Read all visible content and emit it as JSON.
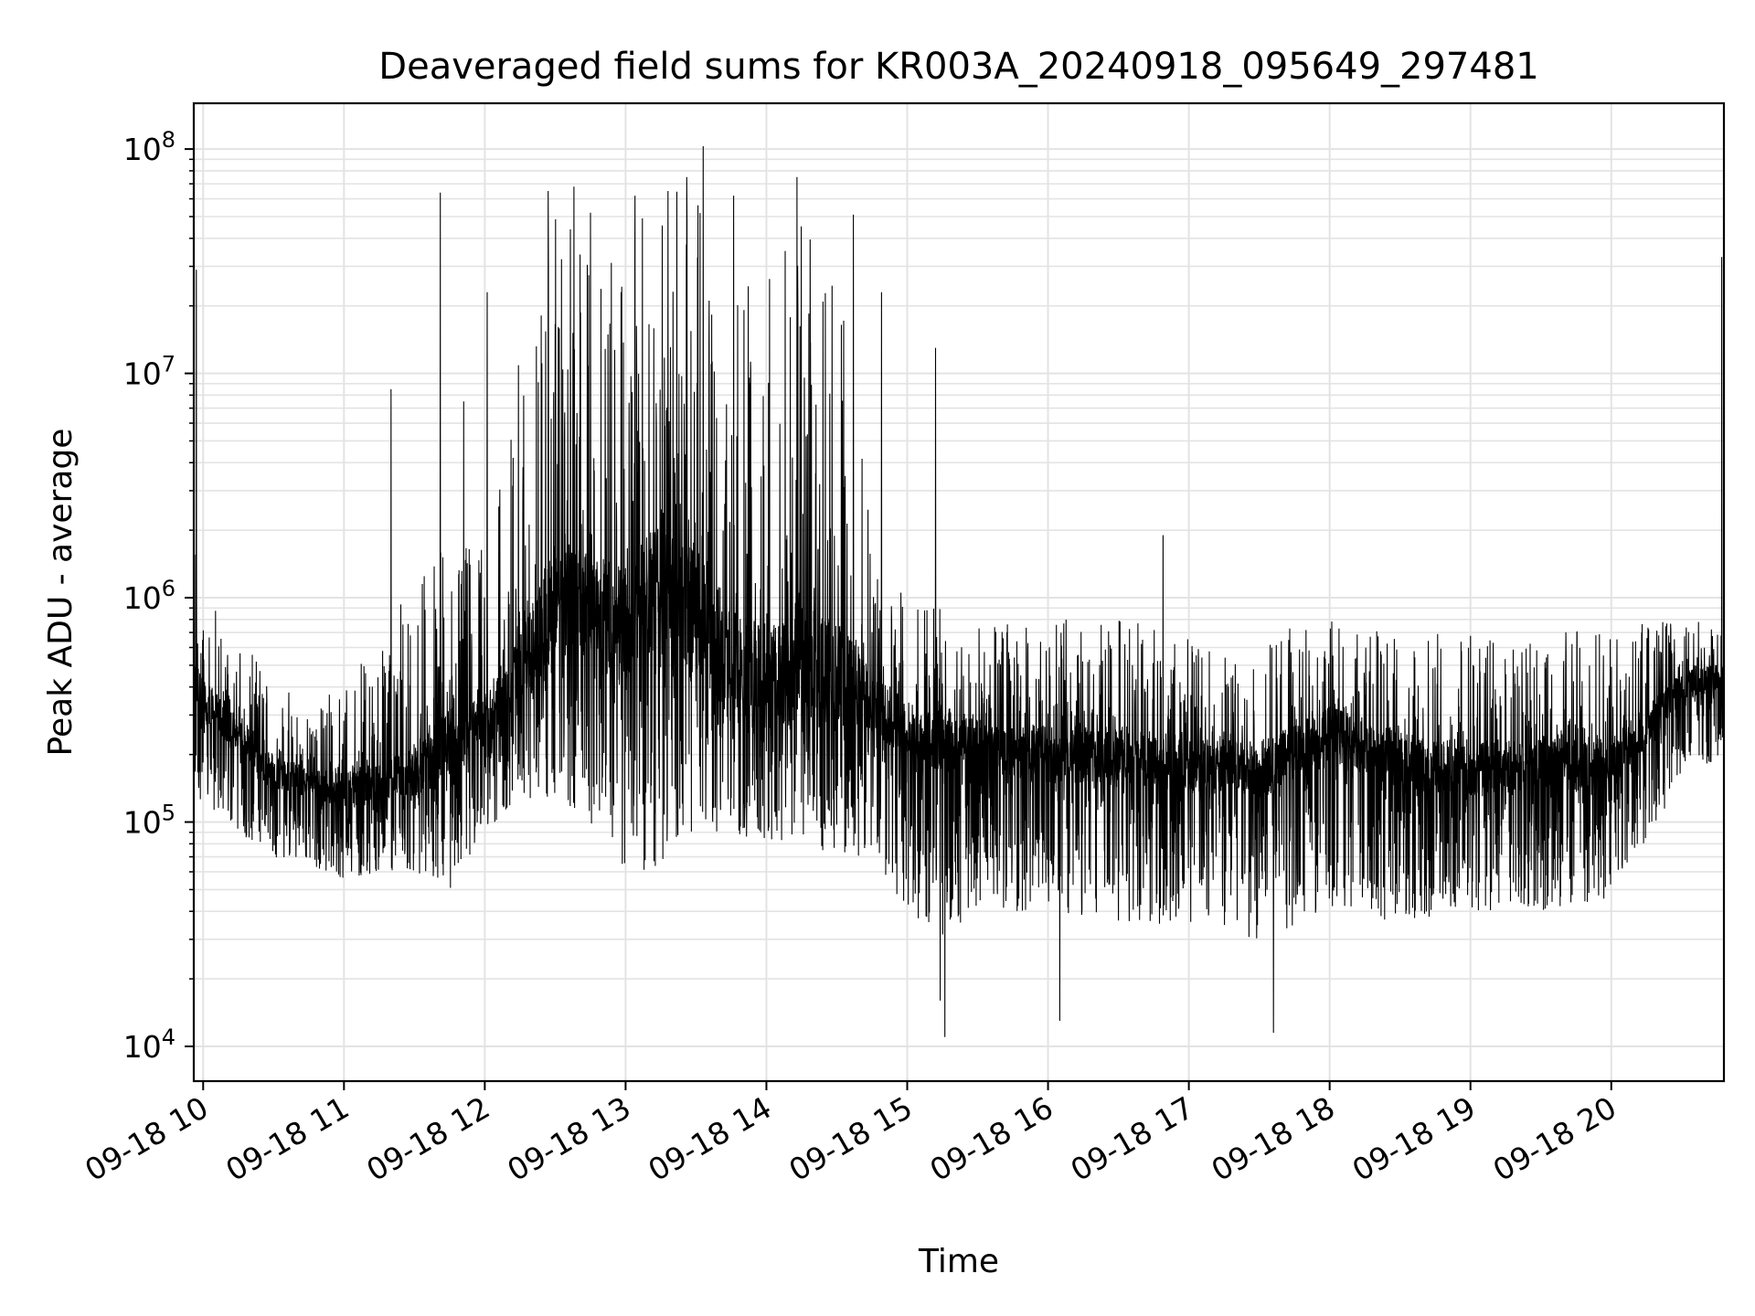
{
  "chart_data": {
    "type": "line",
    "title": "Deaveraged field sums for KR003A_20240918_095649_297481",
    "xlabel": "Time",
    "ylabel": "Peak ADU - average",
    "yscale": "log",
    "ylim": [
      7000,
      160000000
    ],
    "xlim": [
      "2024-09-18 09:56",
      "2024-09-18 20:48"
    ],
    "grid": true,
    "line_color": "#000000",
    "grid_color": "#e3e3e3",
    "x_ticks": [
      {
        "value": "2024-09-18 10:00",
        "label": "09-18 10"
      },
      {
        "value": "2024-09-18 11:00",
        "label": "09-18 11"
      },
      {
        "value": "2024-09-18 12:00",
        "label": "09-18 12"
      },
      {
        "value": "2024-09-18 13:00",
        "label": "09-18 13"
      },
      {
        "value": "2024-09-18 14:00",
        "label": "09-18 14"
      },
      {
        "value": "2024-09-18 15:00",
        "label": "09-18 15"
      },
      {
        "value": "2024-09-18 16:00",
        "label": "09-18 16"
      },
      {
        "value": "2024-09-18 17:00",
        "label": "09-18 17"
      },
      {
        "value": "2024-09-18 18:00",
        "label": "09-18 18"
      },
      {
        "value": "2024-09-18 19:00",
        "label": "09-18 19"
      },
      {
        "value": "2024-09-18 20:00",
        "label": "09-18 20"
      }
    ],
    "y_ticks": [
      {
        "value": 10000,
        "base": "10",
        "exp": "4"
      },
      {
        "value": 100000,
        "base": "10",
        "exp": "5"
      },
      {
        "value": 1000000,
        "base": "10",
        "exp": "6"
      },
      {
        "value": 10000000,
        "base": "10",
        "exp": "7"
      },
      {
        "value": 100000000,
        "base": "10",
        "exp": "8"
      }
    ],
    "envelope": [
      [
        "2024-09-18 09:56",
        400000,
        140000,
        2800000
      ],
      [
        "2024-09-18 10:00",
        350000,
        120000,
        1300000
      ],
      [
        "2024-09-18 10:15",
        250000,
        90000,
        600000
      ],
      [
        "2024-09-18 10:30",
        170000,
        70000,
        500000
      ],
      [
        "2024-09-18 10:45",
        150000,
        65000,
        300000
      ],
      [
        "2024-09-18 11:00",
        140000,
        55000,
        450000
      ],
      [
        "2024-09-18 11:15",
        150000,
        60000,
        600000
      ],
      [
        "2024-09-18 11:30",
        170000,
        60000,
        1500000
      ],
      [
        "2024-09-18 11:45",
        220000,
        50000,
        1700000
      ],
      [
        "2024-09-18 12:00",
        280000,
        90000,
        2000000
      ],
      [
        "2024-09-18 12:15",
        450000,
        130000,
        12000000
      ],
      [
        "2024-09-18 12:30",
        1000000,
        120000,
        50000000
      ],
      [
        "2024-09-18 12:45",
        900000,
        100000,
        40000000
      ],
      [
        "2024-09-18 13:00",
        700000,
        60000,
        45000000
      ],
      [
        "2024-09-18 13:15",
        1300000,
        60000,
        65000000
      ],
      [
        "2024-09-18 13:30",
        900000,
        90000,
        75000000
      ],
      [
        "2024-09-18 13:45",
        500000,
        90000,
        45000000
      ],
      [
        "2024-09-18 14:00",
        400000,
        70000,
        30000000
      ],
      [
        "2024-09-18 14:15",
        500000,
        80000,
        50000000
      ],
      [
        "2024-09-18 14:30",
        450000,
        70000,
        30000000
      ],
      [
        "2024-09-18 14:45",
        350000,
        70000,
        2000000
      ],
      [
        "2024-09-18 15:00",
        250000,
        40000,
        1000000
      ],
      [
        "2024-09-18 15:15",
        230000,
        30000,
        900000
      ],
      [
        "2024-09-18 15:30",
        220000,
        40000,
        750000
      ],
      [
        "2024-09-18 16:00",
        200000,
        40000,
        800000
      ],
      [
        "2024-09-18 16:30",
        200000,
        35000,
        800000
      ],
      [
        "2024-09-18 17:00",
        180000,
        35000,
        750000
      ],
      [
        "2024-09-18 17:30",
        170000,
        30000,
        700000
      ],
      [
        "2024-09-18 18:00",
        250000,
        40000,
        800000
      ],
      [
        "2024-09-18 18:30",
        190000,
        35000,
        750000
      ],
      [
        "2024-09-18 19:00",
        170000,
        40000,
        700000
      ],
      [
        "2024-09-18 19:30",
        180000,
        40000,
        700000
      ],
      [
        "2024-09-18 20:00",
        180000,
        45000,
        750000
      ],
      [
        "2024-09-18 20:30",
        400000,
        150000,
        800000
      ],
      [
        "2024-09-18 20:48",
        450000,
        200000,
        800000
      ]
    ],
    "spikes": [
      [
        "2024-09-18 09:57",
        29000000
      ],
      [
        "2024-09-18 11:20",
        8500000
      ],
      [
        "2024-09-18 11:41",
        64000000
      ],
      [
        "2024-09-18 11:51",
        7500000
      ],
      [
        "2024-09-18 12:01",
        23000000
      ],
      [
        "2024-09-18 12:27",
        65000000
      ],
      [
        "2024-09-18 12:38",
        68000000
      ],
      [
        "2024-09-18 12:45",
        52000000
      ],
      [
        "2024-09-18 13:04",
        62000000
      ],
      [
        "2024-09-18 13:18",
        65000000
      ],
      [
        "2024-09-18 13:26",
        75000000
      ],
      [
        "2024-09-18 13:33",
        103000000
      ],
      [
        "2024-09-18 13:46",
        62000000
      ],
      [
        "2024-09-18 14:13",
        75000000
      ],
      [
        "2024-09-18 14:37",
        51000000
      ],
      [
        "2024-09-18 14:49",
        23000000
      ],
      [
        "2024-09-18 15:12",
        13000000
      ],
      [
        "2024-09-18 15:14",
        16000
      ],
      [
        "2024-09-18 15:16",
        11000
      ],
      [
        "2024-09-18 16:05",
        13000
      ],
      [
        "2024-09-18 16:49",
        1900000
      ],
      [
        "2024-09-18 17:36",
        11500
      ],
      [
        "2024-09-18 20:47",
        33000000
      ]
    ]
  }
}
